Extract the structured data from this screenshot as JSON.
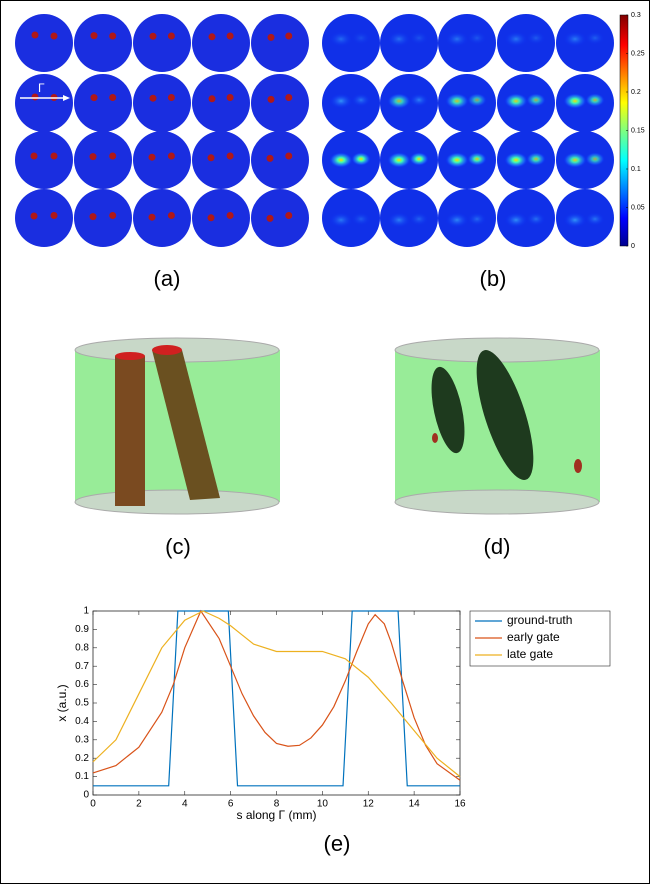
{
  "panels": {
    "a": "(a)",
    "b": "(b)",
    "c": "(c)",
    "d": "(d)",
    "e": "(e)",
    "gamma": "Γ"
  },
  "colorbar": {
    "lim": [
      0,
      0.3
    ],
    "ticks": [
      0,
      0.05,
      0.1,
      0.15,
      0.2,
      0.25,
      0.3
    ]
  },
  "chart_data": {
    "type": "line",
    "xlabel": "s along Γ (mm)",
    "ylabel": "x (a.u.)",
    "xlim": [
      0,
      16
    ],
    "xticks": [
      0,
      2,
      4,
      6,
      8,
      10,
      12,
      14,
      16
    ],
    "ylim": [
      0,
      1
    ],
    "yticks": [
      0,
      0.1,
      0.2,
      0.3,
      0.4,
      0.5,
      0.6,
      0.7,
      0.8,
      0.9,
      1
    ],
    "grid": false,
    "legend": "outside-right",
    "series": [
      {
        "name": "ground-truth",
        "color": "#0072bd",
        "x": [
          0,
          3.3,
          3.7,
          5.9,
          6.3,
          10.9,
          11.3,
          13.3,
          13.7,
          16
        ],
        "values": [
          0.05,
          0.05,
          1,
          1,
          0.05,
          0.05,
          1,
          1,
          0.05,
          0.05
        ]
      },
      {
        "name": "early gate",
        "color": "#d95319",
        "x": [
          0,
          1,
          2,
          3,
          3.5,
          4,
          4.7,
          5.5,
          6,
          6.5,
          7,
          7.5,
          8,
          8.5,
          9,
          9.5,
          10,
          10.5,
          11,
          11.5,
          12,
          12.3,
          12.7,
          13,
          13.5,
          14,
          14.5,
          15,
          16
        ],
        "values": [
          0.12,
          0.16,
          0.26,
          0.45,
          0.6,
          0.8,
          1.0,
          0.85,
          0.7,
          0.55,
          0.43,
          0.34,
          0.28,
          0.265,
          0.27,
          0.31,
          0.38,
          0.48,
          0.62,
          0.78,
          0.93,
          0.98,
          0.93,
          0.83,
          0.62,
          0.42,
          0.27,
          0.17,
          0.08
        ]
      },
      {
        "name": "late gate",
        "color": "#edb120",
        "x": [
          0,
          1,
          2,
          3,
          4,
          4.8,
          5.5,
          6,
          6.5,
          7,
          8,
          9,
          10,
          11,
          12,
          13,
          14,
          15,
          16
        ],
        "values": [
          0.18,
          0.3,
          0.55,
          0.8,
          0.95,
          1.0,
          0.96,
          0.92,
          0.87,
          0.82,
          0.78,
          0.78,
          0.78,
          0.74,
          0.64,
          0.5,
          0.35,
          0.2,
          0.1
        ]
      }
    ]
  }
}
